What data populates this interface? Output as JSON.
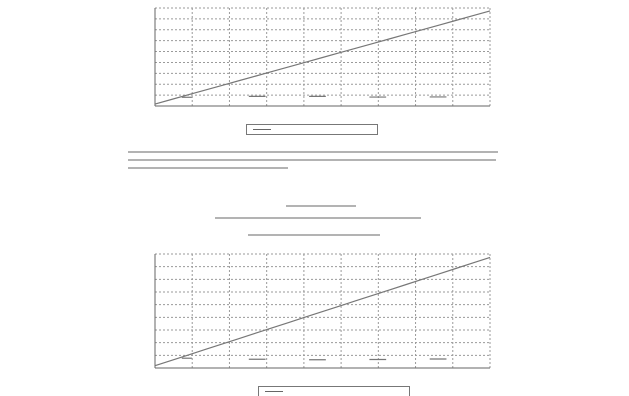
{
  "charts": [
    {
      "type": "line",
      "grid": true,
      "title": "",
      "xlabel": "",
      "ylabel": "",
      "y_ticks": [
        "",
        "",
        "",
        "",
        "",
        "",
        "",
        "",
        "",
        ""
      ],
      "x_ticks": [
        "",
        "",
        "",
        "",
        "",
        "",
        "",
        "",
        "",
        ""
      ],
      "legend": "",
      "line_color": "#777777",
      "grid_color": "#9a9a9a"
    },
    {
      "type": "line",
      "grid": true,
      "title": "",
      "xlabel": "",
      "ylabel": "",
      "y_ticks": [
        "",
        "",
        "",
        "",
        "",
        "",
        "",
        "",
        "",
        ""
      ],
      "x_ticks": [
        "",
        "",
        "",
        "",
        "",
        "",
        "",
        "",
        "",
        ""
      ],
      "legend": "",
      "line_color": "#777777",
      "grid_color": "#9a9a9a"
    }
  ],
  "caption": {
    "body": "",
    "line1": "",
    "line2": "",
    "line3": ""
  }
}
